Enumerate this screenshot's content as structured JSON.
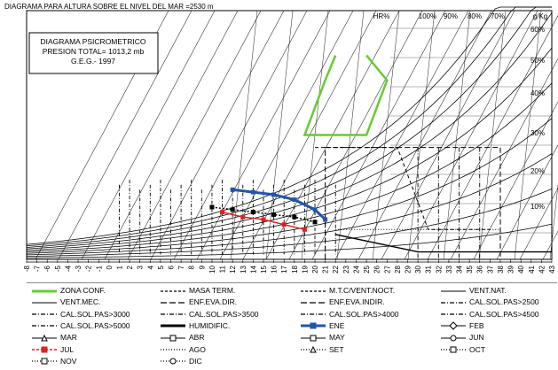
{
  "page_title": "DIAGRAMA  PARA ALTURA SOBRE EL NIVEL DEL MAR =2530 m",
  "chart_data": {
    "type": "line",
    "title": "DIAGRAMA  PARA ALTURA SOBRE EL NIVEL DEL MAR =2530 m",
    "box_lines": [
      "DIAGRAMA  PSICROMETRICO",
      "PRESION TOTAL=  1013,2 mb",
      "G.E.G.-  1997"
    ],
    "x_ticks": [
      -8,
      -7,
      -6,
      -5,
      -4,
      -3,
      -2,
      -1,
      0,
      1,
      2,
      3,
      4,
      5,
      6,
      7,
      8,
      9,
      10,
      11,
      12,
      13,
      14,
      15,
      16,
      17,
      18,
      19,
      20,
      21,
      22,
      23,
      24,
      25,
      26,
      27,
      28,
      29,
      30,
      31,
      32,
      33,
      34,
      35,
      36,
      37,
      38,
      39,
      40,
      41,
      42,
      43
    ],
    "xlim": [
      -8,
      43
    ],
    "top_labels": [
      "HR%",
      "100%",
      "90%",
      "80%",
      "70%",
      "g/Kg"
    ],
    "rh_curve_labels": [
      "60%",
      "50%",
      "40%",
      "30%",
      "20%",
      "10%"
    ],
    "grid": true,
    "legend_position": "bottom",
    "series": [
      {
        "name": "ZONA CONF.",
        "color": "#66cc33",
        "style": "solid-thick"
      },
      {
        "name": "MASA TERM.",
        "color": "#000000",
        "style": "dashed"
      },
      {
        "name": "M.T.C/VENT.NOCT.",
        "color": "#000000",
        "style": "dashed"
      },
      {
        "name": "VENT.NAT.",
        "color": "#000000",
        "style": "solid-thin"
      },
      {
        "name": "VENT.MEC.",
        "color": "#000000",
        "style": "solid-thin"
      },
      {
        "name": "ENF.EVA.DIR.",
        "color": "#000000",
        "style": "longdash"
      },
      {
        "name": "ENF.EVA.INDIR.",
        "color": "#000000",
        "style": "longdash"
      },
      {
        "name": "CAL.SOL.PAS>2500",
        "color": "#000000",
        "style": "dashdot"
      },
      {
        "name": "CAL.SOL.PAS>3000",
        "color": "#000000",
        "style": "dashdot"
      },
      {
        "name": "CAL.SOL.PAS>3500",
        "color": "#000000",
        "style": "dashdot"
      },
      {
        "name": "CAL.SOL.PAS>4000",
        "color": "#000000",
        "style": "dashdot"
      },
      {
        "name": "CAL.SOL.PAS>4500",
        "color": "#000000",
        "style": "dashdot"
      },
      {
        "name": "CAL.SOL.PAS>5000",
        "color": "#000000",
        "style": "dashdot"
      },
      {
        "name": "HUMIDIFIC.",
        "color": "#000000",
        "style": "solid-thick"
      },
      {
        "name": "ENE",
        "color": "#2255aa",
        "style": "thick-square"
      },
      {
        "name": "FEB",
        "color": "#000000",
        "style": "diamond"
      },
      {
        "name": "MAR",
        "color": "#000000",
        "style": "triangle"
      },
      {
        "name": "ABR",
        "color": "#000000",
        "style": "square"
      },
      {
        "name": "MAY",
        "color": "#000000",
        "style": "square"
      },
      {
        "name": "JUN",
        "color": "#000000",
        "style": "circle"
      },
      {
        "name": "JUL",
        "color": "#dd2222",
        "style": "red-square"
      },
      {
        "name": "AGO",
        "color": "#000000",
        "style": "dotted"
      },
      {
        "name": "SET",
        "color": "#000000",
        "style": "dotted-triangle"
      },
      {
        "name": "OCT",
        "color": "#000000",
        "style": "dotted-square"
      },
      {
        "name": "NOV",
        "color": "#000000",
        "style": "dotted-square"
      },
      {
        "name": "DIC",
        "color": "#000000",
        "style": "dotted-circle"
      }
    ],
    "comfort_zone": [
      [
        22,
        0.82
      ],
      [
        21,
        0.72
      ],
      [
        19,
        0.5
      ],
      [
        22,
        0.5
      ],
      [
        25,
        0.5
      ],
      [
        27,
        0.72
      ],
      [
        25,
        0.82
      ]
    ],
    "monthly_lines": [
      {
        "name": "ENE",
        "points": [
          [
            12,
            0.28
          ],
          [
            14,
            0.27
          ],
          [
            16,
            0.26
          ],
          [
            18,
            0.24
          ],
          [
            20,
            0.2
          ],
          [
            21,
            0.16
          ]
        ]
      },
      {
        "name": "JUL",
        "points": [
          [
            11,
            0.19
          ],
          [
            13,
            0.17
          ],
          [
            15,
            0.16
          ],
          [
            17,
            0.14
          ],
          [
            19,
            0.12
          ]
        ]
      },
      {
        "name": "OCT",
        "points": [
          [
            10,
            0.21
          ],
          [
            12,
            0.2
          ],
          [
            14,
            0.19
          ],
          [
            16,
            0.18
          ],
          [
            18,
            0.17
          ],
          [
            20,
            0.15
          ]
        ]
      }
    ]
  }
}
